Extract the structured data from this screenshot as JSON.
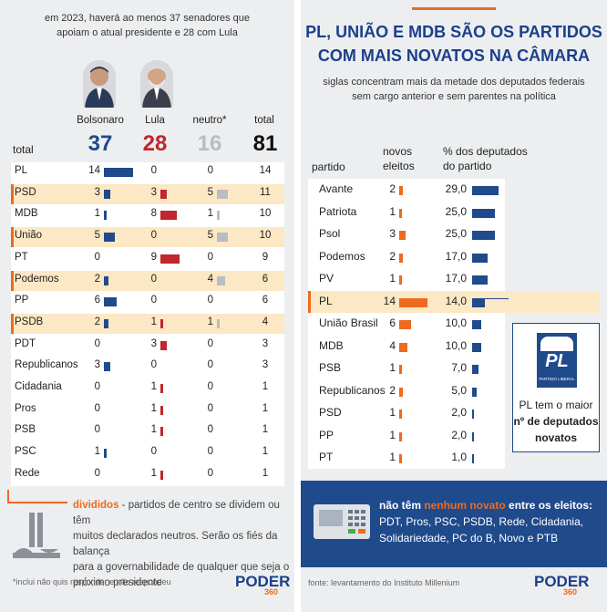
{
  "left": {
    "header_line1": "em 2023, haverá ao menos 37 senadores que",
    "header_line2": "apoiam o atual presidente e 28 com Lula",
    "columns": {
      "total_label": "total",
      "bolsonaro": "Bolsonaro",
      "lula": "Lula",
      "neutro": "neutro*",
      "total": "total"
    },
    "totals": {
      "bolsonaro": "37",
      "lula": "28",
      "neutro": "16",
      "total": "81"
    },
    "colors": {
      "bolsonaro": "#1f4a8c",
      "lula": "#c0262d",
      "neutro": "#b9bcc2",
      "highlight": "#fce8c4",
      "accent": "#ee6a1d"
    },
    "note_title": "divididos",
    "note_text_1": " - partidos de centro se dividem ou têm",
    "note_text_2": "muitos declarados neutros. Serão os fiés da balança",
    "note_text_3": "para a governabilidade de qualquer que seja o",
    "note_text_4": "próximo presidente",
    "footnote": "*inclui não quis responder e não respondeu",
    "logo": "PODER",
    "logo_num": "360"
  },
  "right": {
    "title_line1": "PL, UNIÃO E MDB SÃO OS PARTIDOS",
    "title_line2": "COM MAIS NOVATOS NA CÂMARA",
    "subtitle_line1": "siglas concentram mais da metade dos deputados federais",
    "subtitle_line2": "sem cargo anterior e sem parentes na política",
    "col_party": "partido",
    "col_novos_1": "novos",
    "col_novos_2": "eleitos",
    "col_pct_1": "% dos deputados",
    "col_pct_2": "do partido",
    "callout_logo": "PL",
    "callout_logo_sub": "PARTIDO LIBERAL",
    "callout_line1": "PL tem o maior",
    "callout_line2": "nº de deputados",
    "callout_line3": "novatos",
    "banner_pre": "não têm ",
    "banner_hl": "nenhum novato",
    "banner_post": " entre os eleitos:",
    "banner_list_1": "PDT, Pros, PSC, PSDB, Rede, Cidadania,",
    "banner_list_2": "Solidariedade, PC do B, Novo e PTB",
    "source": "fonte: levantamento do Instituto Millenium",
    "logo": "PODER",
    "logo_num": "360"
  },
  "chart_data": [
    {
      "type": "table",
      "title": "em 2023, haverá ao menos 37 senadores que apoiam o atual presidente e 28 com Lula",
      "columns": [
        "Bolsonaro",
        "Lula",
        "neutro*",
        "total"
      ],
      "rows": [
        {
          "party": "PL",
          "bolsonaro": 14,
          "lula": 0,
          "neutro": 0,
          "total": 14,
          "highlight": false
        },
        {
          "party": "PSD",
          "bolsonaro": 3,
          "lula": 3,
          "neutro": 5,
          "total": 11,
          "highlight": true
        },
        {
          "party": "MDB",
          "bolsonaro": 1,
          "lula": 8,
          "neutro": 1,
          "total": 10,
          "highlight": false
        },
        {
          "party": "União",
          "bolsonaro": 5,
          "lula": 0,
          "neutro": 5,
          "total": 10,
          "highlight": true
        },
        {
          "party": "PT",
          "bolsonaro": 0,
          "lula": 9,
          "neutro": 0,
          "total": 9,
          "highlight": false
        },
        {
          "party": "Podemos",
          "bolsonaro": 2,
          "lula": 0,
          "neutro": 4,
          "total": 6,
          "highlight": true
        },
        {
          "party": "PP",
          "bolsonaro": 6,
          "lula": 0,
          "neutro": 0,
          "total": 6,
          "highlight": false
        },
        {
          "party": "PSDB",
          "bolsonaro": 2,
          "lula": 1,
          "neutro": 1,
          "total": 4,
          "highlight": true
        },
        {
          "party": "PDT",
          "bolsonaro": 0,
          "lula": 3,
          "neutro": 0,
          "total": 3,
          "highlight": false
        },
        {
          "party": "Republicanos",
          "bolsonaro": 3,
          "lula": 0,
          "neutro": 0,
          "total": 3,
          "highlight": false
        },
        {
          "party": "Cidadania",
          "bolsonaro": 0,
          "lula": 1,
          "neutro": 0,
          "total": 1,
          "highlight": false
        },
        {
          "party": "Pros",
          "bolsonaro": 0,
          "lula": 1,
          "neutro": 0,
          "total": 1,
          "highlight": false
        },
        {
          "party": "PSB",
          "bolsonaro": 0,
          "lula": 1,
          "neutro": 0,
          "total": 1,
          "highlight": false
        },
        {
          "party": "PSC",
          "bolsonaro": 1,
          "lula": 0,
          "neutro": 0,
          "total": 1,
          "highlight": false
        },
        {
          "party": "Rede",
          "bolsonaro": 0,
          "lula": 1,
          "neutro": 0,
          "total": 1,
          "highlight": false
        }
      ]
    },
    {
      "type": "bar",
      "title": "PL, UNIÃO E MDB SÃO OS PARTIDOS COM MAIS NOVATOS NA CÂMARA",
      "rows": [
        {
          "party": "Avante",
          "novos": 2,
          "pct": "29,0",
          "pct_value": 29.0,
          "highlight": false
        },
        {
          "party": "Patriota",
          "novos": 1,
          "pct": "25,0",
          "pct_value": 25.0,
          "highlight": false
        },
        {
          "party": "Psol",
          "novos": 3,
          "pct": "25,0",
          "pct_value": 25.0,
          "highlight": false
        },
        {
          "party": "Podemos",
          "novos": 2,
          "pct": "17,0",
          "pct_value": 17.0,
          "highlight": false
        },
        {
          "party": "PV",
          "novos": 1,
          "pct": "17,0",
          "pct_value": 17.0,
          "highlight": false
        },
        {
          "party": "PL",
          "novos": 14,
          "pct": "14,0",
          "pct_value": 14.0,
          "highlight": true
        },
        {
          "party": "União Brasil",
          "novos": 6,
          "pct": "10,0",
          "pct_value": 10.0,
          "highlight": false
        },
        {
          "party": "MDB",
          "novos": 4,
          "pct": "10,0",
          "pct_value": 10.0,
          "highlight": false
        },
        {
          "party": "PSB",
          "novos": 1,
          "pct": "7,0",
          "pct_value": 7.0,
          "highlight": false
        },
        {
          "party": "Republicanos",
          "novos": 2,
          "pct": "5,0",
          "pct_value": 5.0,
          "highlight": false
        },
        {
          "party": "PSD",
          "novos": 1,
          "pct": "2,0",
          "pct_value": 2.0,
          "highlight": false
        },
        {
          "party": "PP",
          "novos": 1,
          "pct": "2,0",
          "pct_value": 2.0,
          "highlight": false
        },
        {
          "party": "PT",
          "novos": 1,
          "pct": "1,0",
          "pct_value": 1.0,
          "highlight": false
        }
      ],
      "colors": {
        "novos": "#ee6a1d",
        "pct": "#1f4a8c"
      }
    }
  ]
}
